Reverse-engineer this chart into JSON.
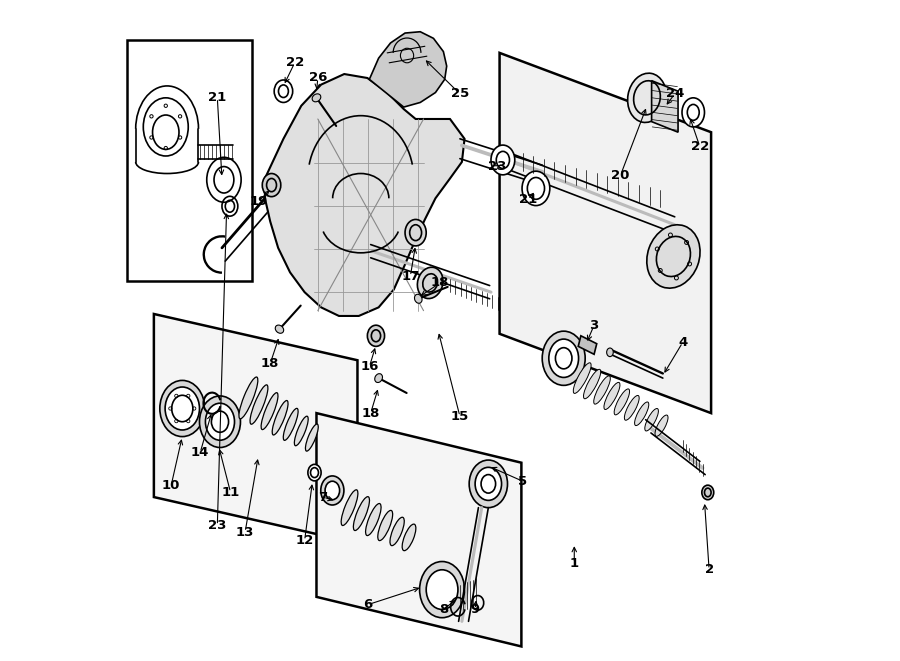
{
  "background_color": "#ffffff",
  "line_color": "#000000",
  "line_width": 1.2,
  "fig_width": 9.0,
  "fig_height": 6.61,
  "dpi": 100
}
